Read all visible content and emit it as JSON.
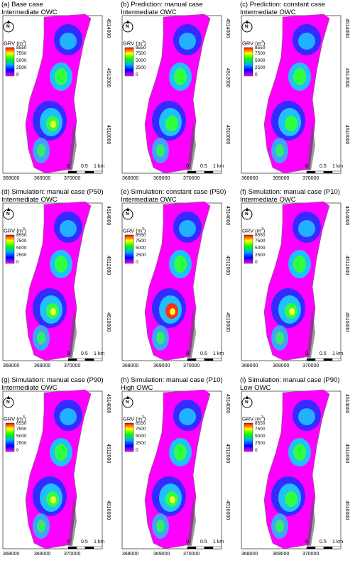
{
  "panels": [
    {
      "title1": "(a) Base case",
      "title2": "Intermediate OWC",
      "variant": 0
    },
    {
      "title1": "(b) Prediction: manual case",
      "title2": "Intermediate OWC",
      "variant": 1
    },
    {
      "title1": "(c) Prediction: constant case",
      "title2": "Intermediate OWC",
      "variant": 2
    },
    {
      "title1": "(d) Simulation: manual case (P50)",
      "title2": "Intermediate OWC",
      "variant": 3
    },
    {
      "title1": "(e) Simulation: constant case (P50)",
      "title2": "Intermediate OWC",
      "variant": 4
    },
    {
      "title1": "(f) Simulation: manual case (P10)",
      "title2": "Intermediate OWC",
      "variant": 5
    },
    {
      "title1": "(g) Simulation: manual case (P90)",
      "title2": "Intermediate OWC",
      "variant": 6
    },
    {
      "title1": "(h) Simulation: manual case (P10)",
      "title2": "High OWC",
      "variant": 7
    },
    {
      "title1": "(i) Simulation: manual case (P90)",
      "title2": "Low OWC",
      "variant": 8
    }
  ],
  "legend": {
    "title": "GRV (m",
    "title_sup": "3",
    "title_end": ")",
    "labels": [
      "8550",
      "7500",
      "5000",
      "2500",
      "0"
    ],
    "colors": [
      "#ff0000",
      "#ffff00",
      "#00ff00",
      "#00aaff",
      "#0000ff",
      "#ff00ff"
    ]
  },
  "north_label": "N",
  "y_ticks": [
    "4514000",
    "4512000",
    "4510000"
  ],
  "x_ticks": [
    "368000",
    "369000",
    "370000"
  ],
  "scalebar": {
    "labels": [
      "0",
      "0.5",
      "1 km"
    ]
  },
  "colors": {
    "field": "#ff00ff",
    "low": "#2030ff",
    "mid": "#20c0ff",
    "high": "#30ff40",
    "peak": "#ffff30",
    "max": "#ff3010",
    "edge": "#707070"
  }
}
